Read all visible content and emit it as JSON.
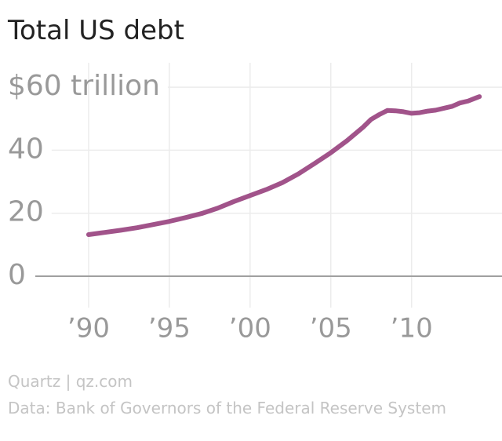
{
  "chart_data": {
    "type": "line",
    "title": "Total US debt",
    "x": [
      1990,
      1991,
      1992,
      1993,
      1994,
      1995,
      1996,
      1997,
      1998,
      1999,
      2000,
      2001,
      2002,
      2003,
      2004,
      2005,
      2006,
      2007,
      2007.5,
      2008,
      2008.5,
      2009,
      2009.5,
      2010,
      2010.5,
      2011,
      2011.5,
      2012,
      2012.5,
      2013,
      2013.5,
      2014,
      2014.2
    ],
    "series": [
      {
        "name": "Total US debt",
        "color": "#a1538a",
        "values": [
          13.2,
          13.9,
          14.6,
          15.4,
          16.4,
          17.4,
          18.6,
          19.9,
          21.6,
          23.7,
          25.6,
          27.5,
          29.7,
          32.5,
          35.8,
          39.2,
          43.0,
          47.3,
          49.8,
          51.3,
          52.6,
          52.5,
          52.2,
          51.7,
          51.9,
          52.4,
          52.7,
          53.3,
          53.9,
          55.0,
          55.6,
          56.6,
          57.0
        ]
      }
    ],
    "xlim": [
      1986.7,
      2015.6
    ],
    "ylim": [
      0,
      65
    ],
    "xticks": [
      {
        "value": 1990,
        "label": "’90"
      },
      {
        "value": 1995,
        "label": "’95"
      },
      {
        "value": 2000,
        "label": "’00"
      },
      {
        "value": 2005,
        "label": "’05"
      },
      {
        "value": 2010,
        "label": "’10"
      }
    ],
    "yticks": [
      0,
      20,
      40,
      {
        "value": 60,
        "label": "$60 trillion"
      }
    ],
    "grid": true,
    "source": "Quartz | qz.com",
    "note": "Data: Bank of Governors of the Federal Reserve System"
  }
}
